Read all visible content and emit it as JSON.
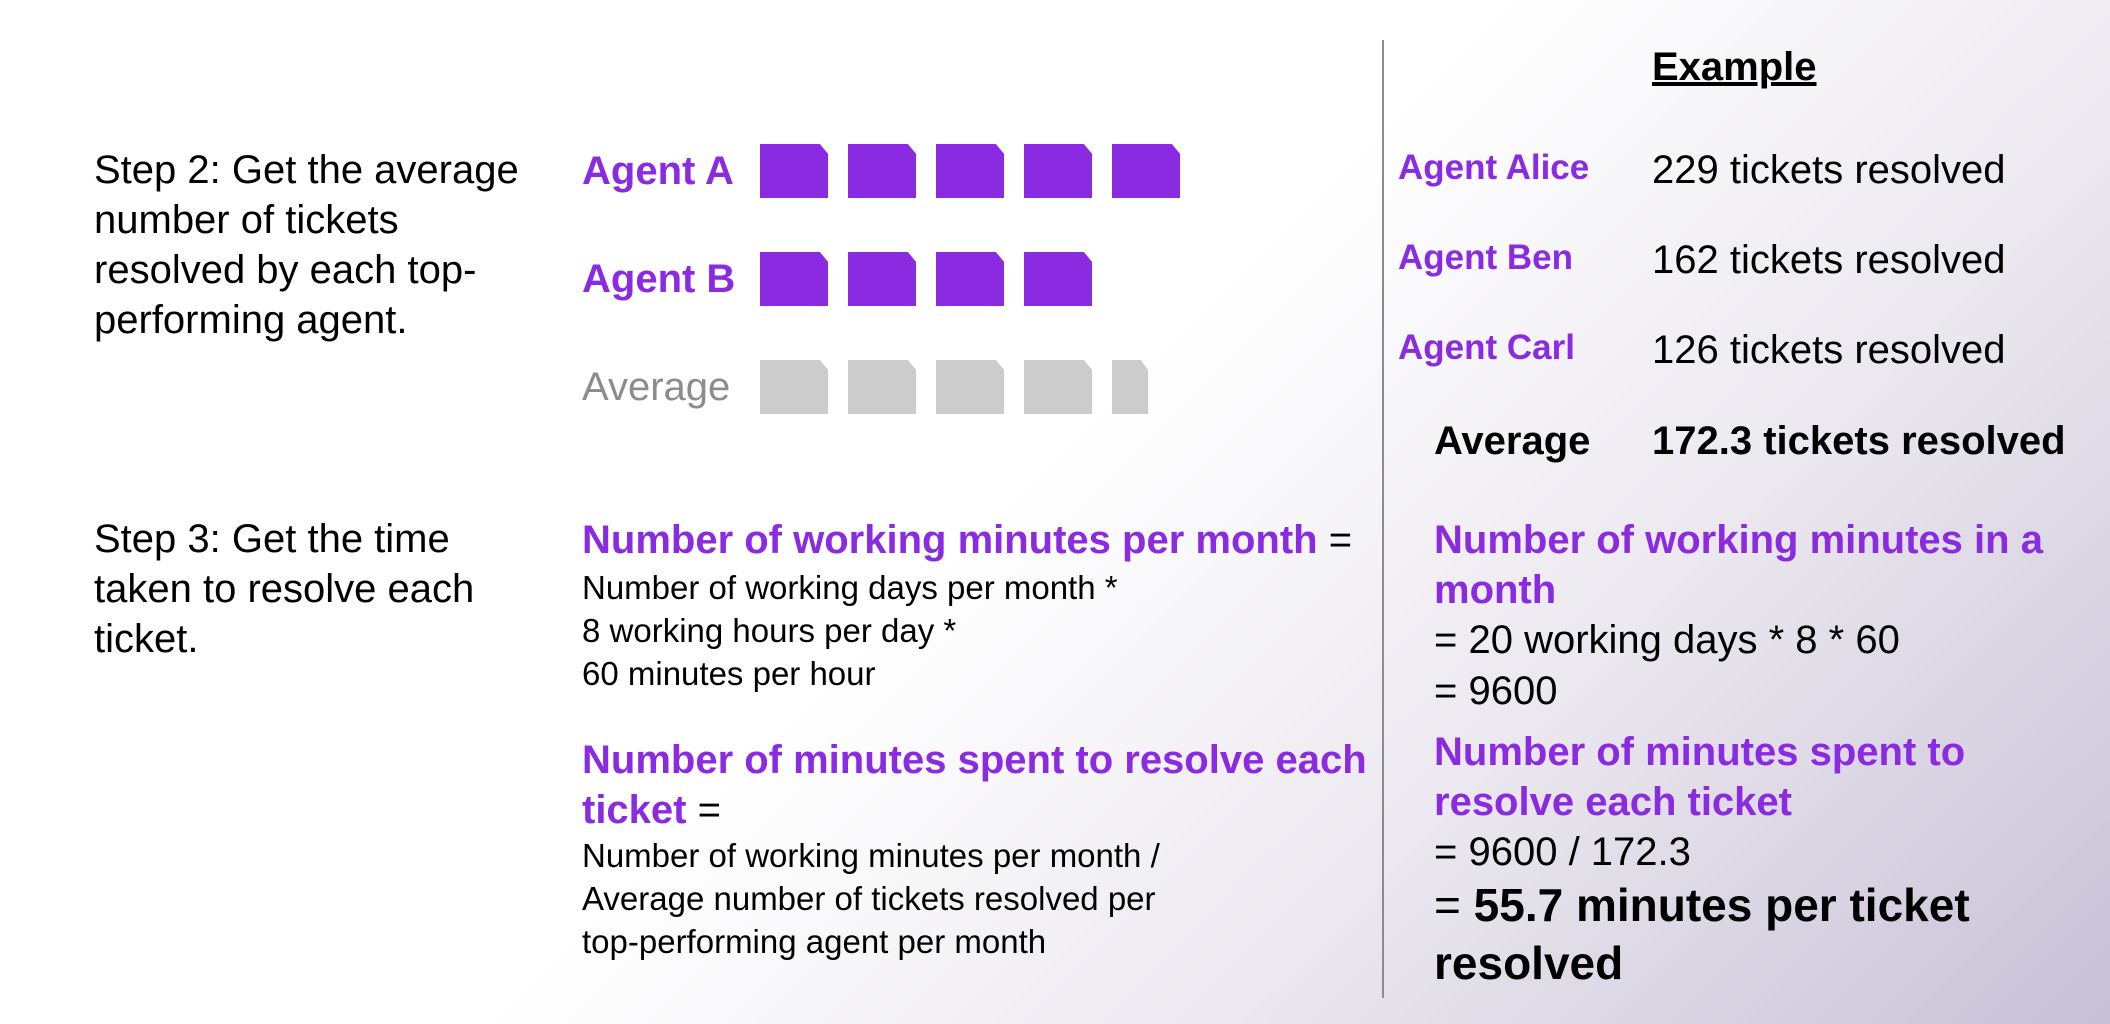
{
  "steps": {
    "step2": "Step 2: Get the average number of tickets resolved by each top-performing agent.",
    "step3": "Step 3: Get the time taken to resolve each ticket."
  },
  "diagram": {
    "agent_a": "Agent A",
    "agent_b": "Agent B",
    "average": "Average",
    "agent_a_tickets": 5,
    "agent_b_tickets": 4,
    "average_tickets": 4.5
  },
  "formulas": {
    "working_minutes_title": "Number of working minutes per month",
    "equals": "=",
    "working_minutes_lines": [
      "Number of working days per month *",
      "8 working hours per day *",
      "60 minutes per hour"
    ],
    "minutes_per_ticket_title": "Number of minutes spent to resolve each ticket",
    "minutes_per_ticket_lines": [
      "Number of working minutes per month /",
      "Average number of tickets resolved per",
      "top-performing agent per month"
    ]
  },
  "example": {
    "title": "Example",
    "agents": [
      {
        "name": "Agent Alice",
        "resolved": "229 tickets resolved"
      },
      {
        "name": "Agent Ben",
        "resolved": "162 tickets resolved"
      },
      {
        "name": "Agent Carl",
        "resolved": "126 tickets resolved"
      }
    ],
    "average_label": "Average",
    "average_value": "172.3 tickets resolved",
    "working_minutes_title": "Number of working minutes in a month",
    "working_minutes_calc": "= 20 working days * 8 * 60",
    "working_minutes_result": "= 9600",
    "minutes_per_ticket_title": "Number of minutes spent to resolve each ticket",
    "minutes_per_ticket_calc": "= 9600 / 172.3",
    "result_prefix": "= ",
    "result_value": "55.7 minutes per ticket resolved"
  },
  "colors": {
    "accent": "#8a2be2",
    "tile_gray": "#cccccc",
    "divider": "#8c8c8c"
  }
}
